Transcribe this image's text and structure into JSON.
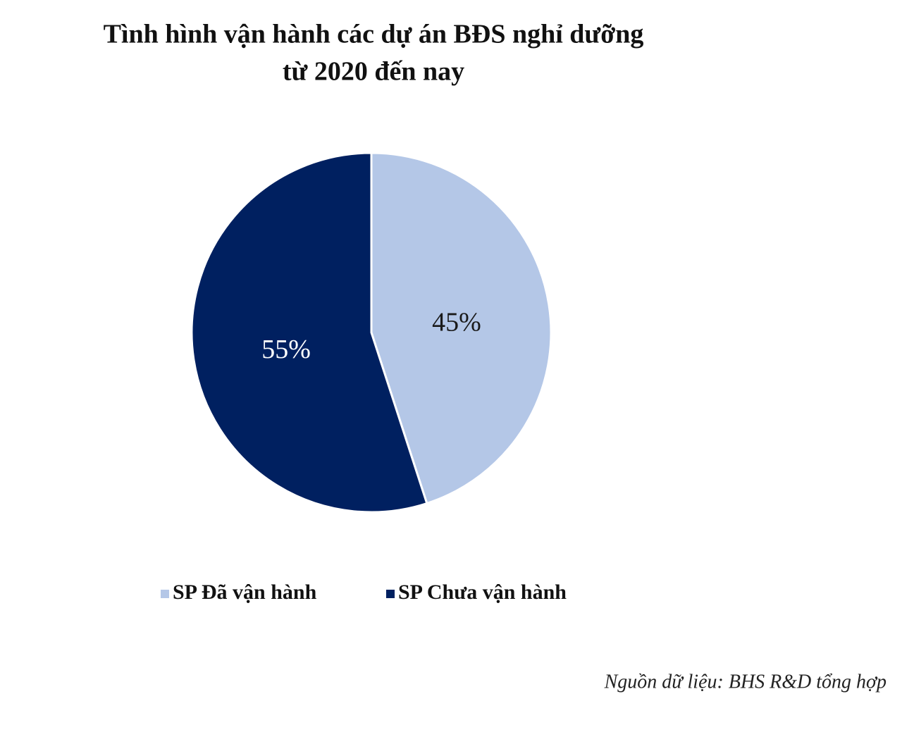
{
  "chart_data": {
    "type": "pie",
    "title": [
      "Tình hình vận hành các dự án BĐS nghỉ dưỡng",
      "từ 2020 đến nay"
    ],
    "categories": [
      "SP Đã vận hành",
      "SP Chưa vận hành"
    ],
    "values": [
      45,
      55
    ],
    "value_labels": [
      "45%",
      "55%"
    ],
    "colors": [
      "#b4c7e7",
      "#002060"
    ],
    "label_colors": [
      "#1a1a1a",
      "#ffffff"
    ],
    "legend": "bottom",
    "source": "Nguồn dữ liệu: BHS R&D tổng hợp"
  }
}
